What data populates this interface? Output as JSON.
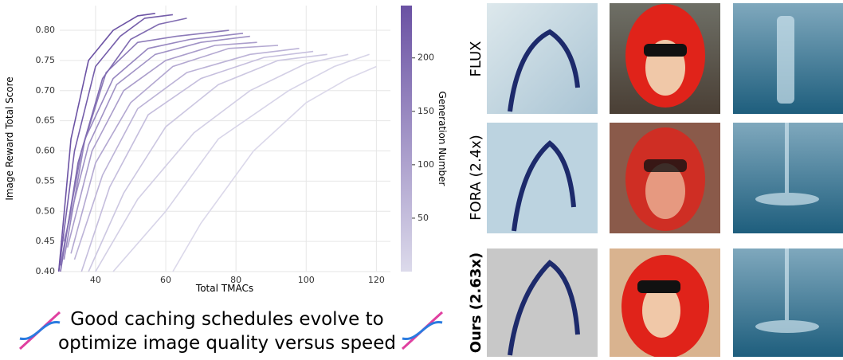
{
  "chart_data": {
    "type": "line",
    "xlabel": "Total TMACs",
    "ylabel": "Image Reward Total Score",
    "xlim": [
      29.8,
      124
    ],
    "ylim": [
      0.4,
      0.841
    ],
    "xticks": [
      40,
      60,
      80,
      100,
      120
    ],
    "yticks": [
      {
        "value": 0.4,
        "label": "0.40"
      },
      {
        "value": 0.45,
        "label": "0.45"
      },
      {
        "value": 0.5,
        "label": "0.50"
      },
      {
        "value": 0.55,
        "label": "0.55"
      },
      {
        "value": 0.6,
        "label": "0.60"
      },
      {
        "value": 0.65,
        "label": "0.65"
      },
      {
        "value": 0.7,
        "label": "0.70"
      },
      {
        "value": 0.75,
        "label": "0.75"
      },
      {
        "value": 0.8,
        "label": "0.80"
      }
    ],
    "grid": true,
    "colorbar": {
      "label": "Generation Number",
      "lim": [
        0,
        249
      ],
      "ticks": [
        50,
        100,
        150,
        200
      ],
      "colors": [
        "#dcdaeb",
        "#6a51a3"
      ]
    },
    "series": [
      {
        "generation": 3,
        "x": [
          62,
          70,
          85,
          100,
          112,
          120
        ],
        "values": [
          0.4,
          0.48,
          0.6,
          0.68,
          0.72,
          0.74
        ]
      },
      {
        "generation": 10,
        "x": [
          45,
          60,
          75,
          95,
          108,
          118
        ],
        "values": [
          0.4,
          0.5,
          0.62,
          0.7,
          0.74,
          0.76
        ]
      },
      {
        "generation": 20,
        "x": [
          40,
          52,
          68,
          84,
          100,
          112
        ],
        "values": [
          0.4,
          0.52,
          0.63,
          0.7,
          0.745,
          0.76
        ]
      },
      {
        "generation": 35,
        "x": [
          38,
          48,
          60,
          75,
          92,
          106
        ],
        "values": [
          0.4,
          0.53,
          0.64,
          0.71,
          0.75,
          0.76
        ]
      },
      {
        "generation": 50,
        "x": [
          36,
          44,
          55,
          70,
          88,
          102
        ],
        "values": [
          0.4,
          0.54,
          0.66,
          0.72,
          0.755,
          0.765
        ]
      },
      {
        "generation": 70,
        "x": [
          34,
          42,
          52,
          66,
          84,
          98
        ],
        "values": [
          0.42,
          0.56,
          0.67,
          0.73,
          0.76,
          0.77
        ]
      },
      {
        "generation": 90,
        "x": [
          33,
          40,
          50,
          62,
          78,
          92
        ],
        "values": [
          0.43,
          0.58,
          0.68,
          0.74,
          0.77,
          0.775
        ]
      },
      {
        "generation": 110,
        "x": [
          32,
          39,
          48,
          60,
          74,
          86
        ],
        "values": [
          0.44,
          0.6,
          0.7,
          0.75,
          0.775,
          0.78
        ]
      },
      {
        "generation": 130,
        "x": [
          31,
          38,
          46,
          57,
          70,
          84
        ],
        "values": [
          0.45,
          0.61,
          0.71,
          0.76,
          0.78,
          0.79
        ]
      },
      {
        "generation": 150,
        "x": [
          31,
          37,
          45,
          55,
          67,
          82
        ],
        "values": [
          0.42,
          0.62,
          0.72,
          0.77,
          0.785,
          0.795
        ]
      },
      {
        "generation": 175,
        "x": [
          30,
          36,
          43,
          52,
          63,
          78
        ],
        "values": [
          0.41,
          0.6,
          0.73,
          0.78,
          0.79,
          0.8
        ]
      },
      {
        "generation": 200,
        "x": [
          30,
          35,
          42,
          50,
          58,
          66
        ],
        "values": [
          0.4,
          0.58,
          0.72,
          0.785,
          0.81,
          0.82
        ]
      },
      {
        "generation": 225,
        "x": [
          29.5,
          34,
          40,
          47,
          54,
          62
        ],
        "values": [
          0.4,
          0.6,
          0.74,
          0.79,
          0.82,
          0.826
        ]
      },
      {
        "generation": 245,
        "x": [
          29.5,
          33,
          38,
          45,
          52,
          57
        ],
        "values": [
          0.4,
          0.62,
          0.75,
          0.8,
          0.824,
          0.828
        ]
      }
    ]
  },
  "figure": {
    "caption_lines": [
      "Good caching schedules evolve to",
      "optimize image quality versus speed"
    ],
    "row_labels": [
      "FLUX",
      "FORA (2.4x)",
      "Ours (2.63x)"
    ]
  }
}
